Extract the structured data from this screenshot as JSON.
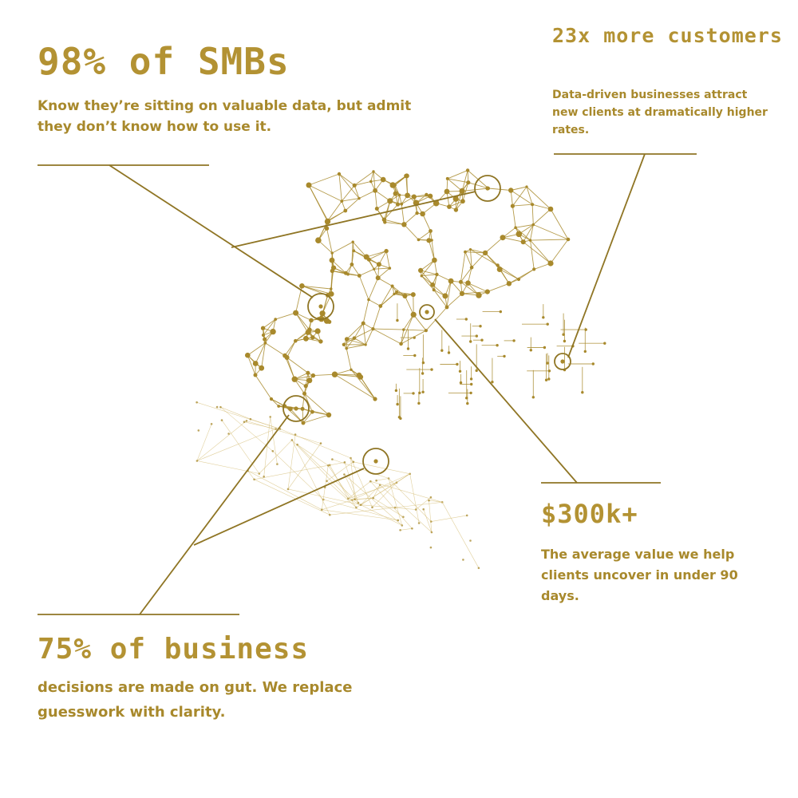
{
  "colors": {
    "gold": "#a8892c",
    "gold_light": "#d4bc74",
    "background": "#ffffff"
  },
  "callouts": [
    {
      "stat": "98% of SMBs",
      "text": "Know they’re sitting on valuable data, but admit they don’t know how to use it."
    },
    {
      "stat": "23x more customers",
      "text": "Data-driven businesses attract new clients at dramatically higher rates."
    },
    {
      "stat": "$300k+",
      "text": "The average value we help clients uncover in under 90 days."
    },
    {
      "stat": "75% of business",
      "text": "decisions are made on gut. We replace guesswork with clarity."
    }
  ],
  "graphic": "network-map"
}
